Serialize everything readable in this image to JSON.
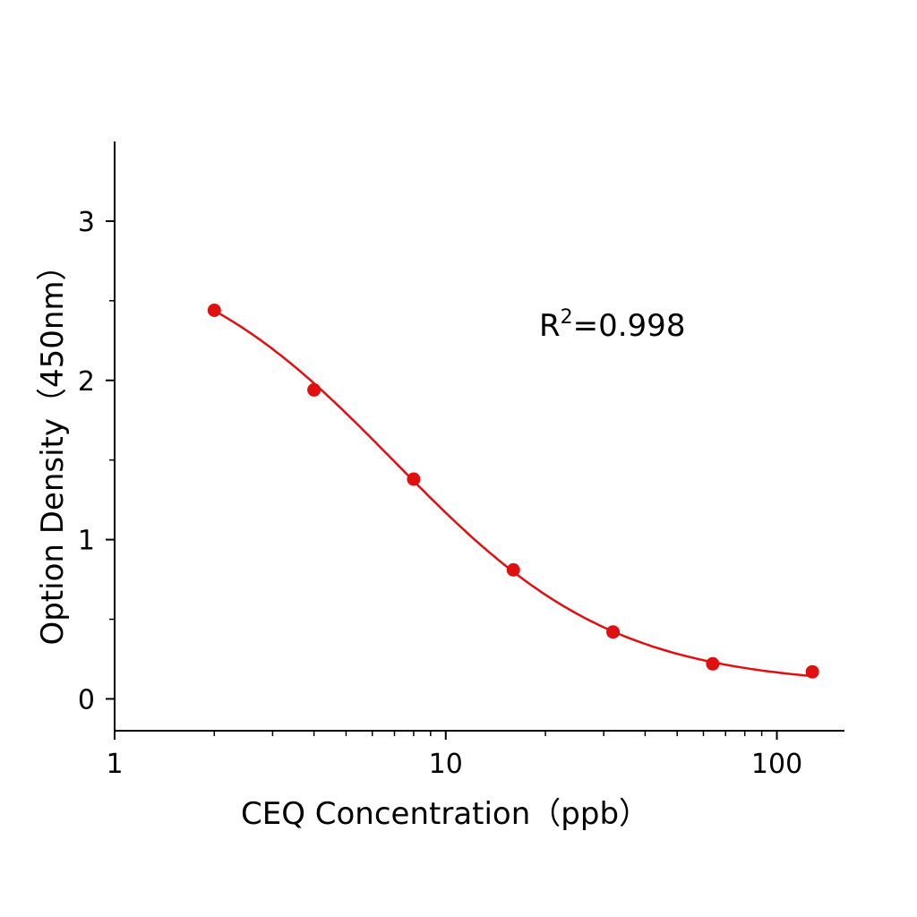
{
  "chart_data": {
    "type": "scatter",
    "title": "",
    "xlabel": "CEQ  Concentration（ppb）",
    "ylabel": "Option Density（450nm）",
    "x_scale": "log",
    "xlim": [
      1,
      160
    ],
    "ylim": [
      -0.2,
      3.5
    ],
    "x_ticks": [
      1,
      10,
      100
    ],
    "x_tick_labels": [
      "1",
      "10",
      "100"
    ],
    "y_ticks": [
      0,
      1,
      2,
      3
    ],
    "y_tick_labels": [
      "0",
      "1",
      "2",
      "3"
    ],
    "grid": false,
    "series": [
      {
        "x": [
          2,
          4,
          8,
          16,
          32,
          64,
          128
        ],
        "y": [
          2.44,
          1.94,
          1.38,
          0.81,
          0.42,
          0.22,
          0.17
        ],
        "marker": "circle",
        "fit_line": "four-parameter logistic",
        "color": "#e01010"
      }
    ],
    "annotation": {
      "base": "R",
      "superscript": "2",
      "text": "=0.998"
    }
  }
}
